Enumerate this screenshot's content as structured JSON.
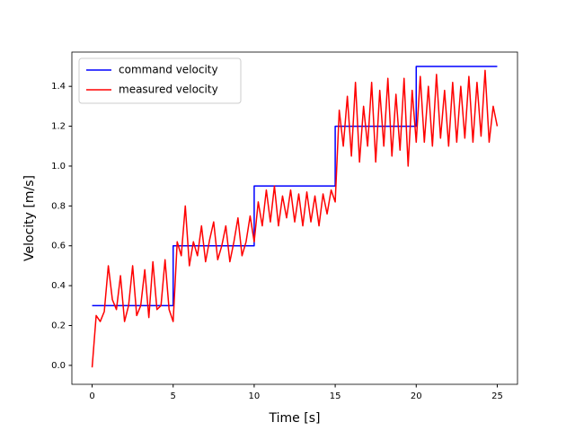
{
  "chart_data": {
    "type": "line",
    "xlabel": "Time [s]",
    "ylabel": "Velocity [m/s]",
    "xlim": [
      -1.25,
      26.25
    ],
    "ylim": [
      -0.095,
      1.572
    ],
    "xticks": [
      0,
      5,
      10,
      15,
      20,
      25
    ],
    "yticks": [
      {
        "value": 0,
        "label": "0.0"
      },
      {
        "value": 0.2,
        "label": "0.2"
      },
      {
        "value": 0.4,
        "label": "0.4"
      },
      {
        "value": 0.6,
        "label": "0.6"
      },
      {
        "value": 0.8,
        "label": "0.8"
      },
      {
        "value": 1.0,
        "label": "1.0"
      },
      {
        "value": 1.2,
        "label": "1.2"
      },
      {
        "value": 1.4,
        "label": "1.4"
      }
    ],
    "legend": "upper left",
    "series": [
      {
        "name": "command velocity",
        "color": "#0000ff",
        "x": [
          0,
          5,
          5,
          10,
          10,
          15,
          15,
          20,
          20,
          25
        ],
        "values": [
          0.3,
          0.3,
          0.6,
          0.6,
          0.9,
          0.9,
          1.2,
          1.2,
          1.5,
          1.5
        ]
      },
      {
        "name": "measured velocity",
        "color": "#ff0000",
        "x": [
          0,
          0.25,
          0.5,
          0.75,
          1,
          1.25,
          1.5,
          1.75,
          2,
          2.25,
          2.5,
          2.75,
          3,
          3.25,
          3.5,
          3.75,
          4,
          4.25,
          4.5,
          4.75,
          5,
          5.25,
          5.5,
          5.75,
          6,
          6.25,
          6.5,
          6.75,
          7,
          7.25,
          7.5,
          7.75,
          8,
          8.25,
          8.5,
          8.75,
          9,
          9.25,
          9.5,
          9.75,
          10,
          10.25,
          10.5,
          10.75,
          11,
          11.25,
          11.5,
          11.75,
          12,
          12.25,
          12.5,
          12.75,
          13,
          13.25,
          13.5,
          13.75,
          14,
          14.25,
          14.5,
          14.75,
          15,
          15.25,
          15.5,
          15.75,
          16,
          16.25,
          16.5,
          16.75,
          17,
          17.25,
          17.5,
          17.75,
          18,
          18.25,
          18.5,
          18.75,
          19,
          19.25,
          19.5,
          19.75,
          20,
          20.25,
          20.5,
          20.75,
          21,
          21.25,
          21.5,
          21.75,
          22,
          22.25,
          22.5,
          22.75,
          23,
          23.25,
          23.5,
          23.75,
          24,
          24.25,
          24.5,
          24.75,
          25
        ],
        "values": [
          -0.01,
          0.25,
          0.22,
          0.27,
          0.5,
          0.33,
          0.28,
          0.45,
          0.22,
          0.3,
          0.5,
          0.25,
          0.3,
          0.48,
          0.24,
          0.52,
          0.28,
          0.3,
          0.53,
          0.28,
          0.22,
          0.62,
          0.55,
          0.8,
          0.5,
          0.62,
          0.55,
          0.7,
          0.52,
          0.63,
          0.72,
          0.53,
          0.6,
          0.7,
          0.52,
          0.62,
          0.74,
          0.55,
          0.62,
          0.75,
          0.62,
          0.82,
          0.7,
          0.88,
          0.72,
          0.9,
          0.7,
          0.85,
          0.74,
          0.88,
          0.72,
          0.86,
          0.7,
          0.87,
          0.72,
          0.85,
          0.7,
          0.86,
          0.76,
          0.88,
          0.82,
          1.28,
          1.1,
          1.35,
          1.05,
          1.42,
          1.02,
          1.3,
          1.1,
          1.42,
          1.02,
          1.38,
          1.1,
          1.44,
          1.05,
          1.36,
          1.08,
          1.44,
          1.0,
          1.38,
          1.12,
          1.45,
          1.12,
          1.4,
          1.1,
          1.46,
          1.14,
          1.38,
          1.1,
          1.42,
          1.12,
          1.4,
          1.14,
          1.45,
          1.12,
          1.42,
          1.15,
          1.48,
          1.12,
          1.3,
          1.2
        ]
      }
    ]
  }
}
